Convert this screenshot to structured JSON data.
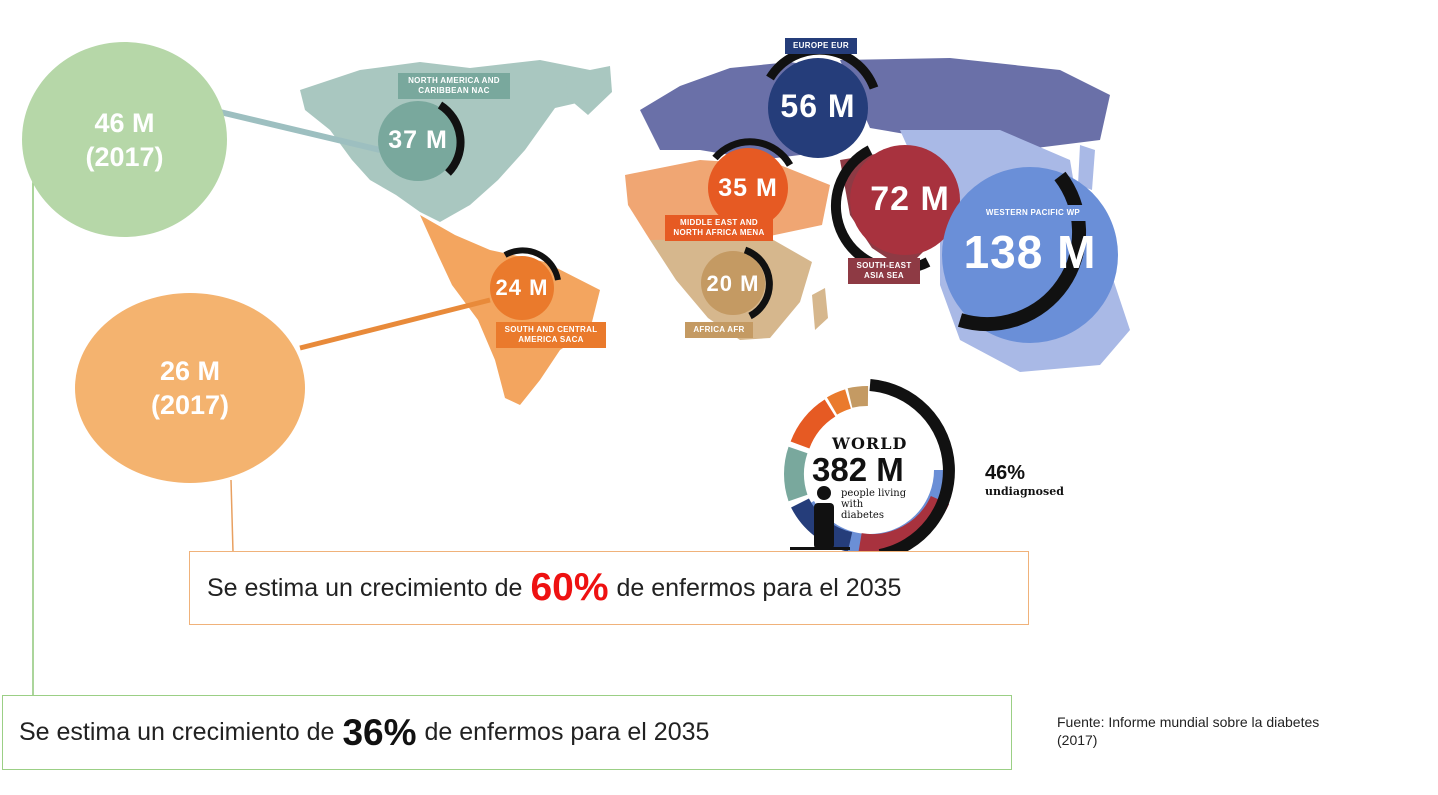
{
  "callouts": {
    "na_bubble": {
      "value": "46 M",
      "year": "(2017)",
      "color": "#b6d7a8"
    },
    "sa_bubble": {
      "value": "26 M",
      "year": "(2017)",
      "color": "#f4b36f"
    }
  },
  "notes": {
    "sa_growth": {
      "prefix": "Se estima un crecimiento de",
      "pct": "60%",
      "suffix": "de enfermos para el 2035",
      "pct_color": "#ee1111"
    },
    "na_growth": {
      "prefix": "Se estima un crecimiento de",
      "pct": "36%",
      "suffix": "de enfermos para el 2035"
    }
  },
  "source": {
    "line1": "Fuente:  Informe mundial sobre la diabetes",
    "line2": "(2017)"
  },
  "regions": {
    "nac": {
      "label_1": "NORTH AMERICA AND",
      "label_2": "CARIBBEAN NAC",
      "value": "37 M",
      "color": "#79a89d"
    },
    "eur": {
      "label_1": "EUROPE EUR",
      "value": "56 M",
      "color": "#253d7a"
    },
    "mena": {
      "label_1": "MIDDLE EAST AND",
      "label_2": "NORTH AFRICA MENA",
      "value": "35 M",
      "color": "#e65a23"
    },
    "sea": {
      "label_1": "SOUTH-EAST",
      "label_2": "ASIA SEA",
      "value": "72 M",
      "color": "#a8323e"
    },
    "wp": {
      "label_1": "WESTERN PACIFIC WP",
      "value": "138 M",
      "color": "#6a8fd8"
    },
    "saca": {
      "label_1": "SOUTH AND CENTRAL",
      "label_2": "AMERICA SACA",
      "value": "24 M",
      "color": "#ea7a2c"
    },
    "afr": {
      "label_1": "AFRICA AFR",
      "value": "20 M",
      "color": "#c49a63"
    }
  },
  "world": {
    "title": "WORLD",
    "value": "382 M",
    "line1": "people living",
    "line2": "with",
    "line3": "diabetes",
    "undiagnosed_pct": "46%",
    "undiagnosed_label": "undiagnosed"
  }
}
